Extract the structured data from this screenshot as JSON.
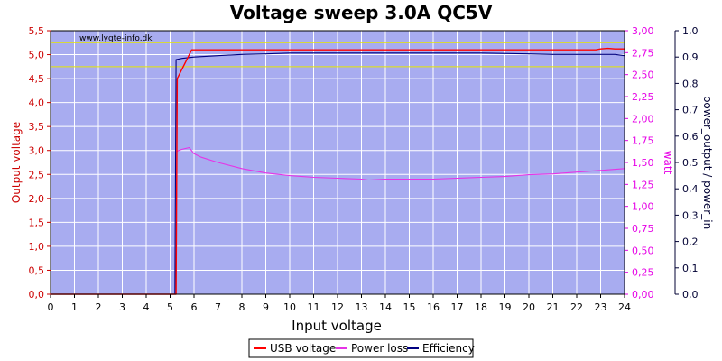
{
  "chart_data": {
    "type": "line",
    "title": "Voltage sweep 3.0A QC5V",
    "watermark": "www.lygte-info.dk",
    "xlabel": "Input voltage",
    "ylabel_left": "Output voltage",
    "ylabel_right1": "watt",
    "ylabel_right2": "power_output / power_in",
    "xlim": [
      0,
      24
    ],
    "ylim_left": [
      0,
      5.5
    ],
    "ylim_right1": [
      0,
      3.0
    ],
    "ylim_right2": [
      0,
      1.0
    ],
    "x_ticks": [
      "0",
      "1",
      "2",
      "3",
      "4",
      "5",
      "6",
      "7",
      "8",
      "9",
      "10",
      "11",
      "12",
      "13",
      "14",
      "15",
      "16",
      "17",
      "18",
      "19",
      "20",
      "21",
      "22",
      "23",
      "24"
    ],
    "left_ticks": [
      "0,0",
      "0,5",
      "1,0",
      "1,5",
      "2,0",
      "2,5",
      "3,0",
      "3,5",
      "4,0",
      "4,5",
      "5,0",
      "5,5"
    ],
    "right1_ticks": [
      "0,00",
      "0,25",
      "0,50",
      "0,75",
      "1,00",
      "1,25",
      "1,50",
      "1,75",
      "2,00",
      "2,25",
      "2,50",
      "2,75",
      "3,00"
    ],
    "right2_ticks": [
      "0,0",
      "0,1",
      "0,2",
      "0,3",
      "0,4",
      "0,5",
      "0,6",
      "0,7",
      "0,8",
      "0,9",
      "1,0"
    ],
    "reference_lines_left": [
      4.75,
      5.25
    ],
    "grid": true,
    "legend_position": "bottom",
    "colors": {
      "background": "#a8acf0",
      "grid": "#ffffff",
      "usb_voltage": "#ff0000",
      "power_loss": "#e633e6",
      "efficiency": "#000080",
      "reference": "#e6e600",
      "left_axis": "#cc0000",
      "right1_axis": "#e600e6",
      "right2_axis": "#000033"
    },
    "series": [
      {
        "name": "USB voltage",
        "axis": "left",
        "x": [
          0,
          5.0,
          5.2,
          5.25,
          5.3,
          5.6,
          5.9,
          6.0,
          7,
          8,
          10,
          12,
          14,
          16,
          18,
          20,
          22,
          22.8,
          23.0,
          23.3,
          23.6,
          24
        ],
        "y": [
          0,
          0,
          0,
          0,
          4.5,
          4.8,
          5.1,
          5.1,
          5.1,
          5.1,
          5.1,
          5.1,
          5.1,
          5.1,
          5.1,
          5.1,
          5.1,
          5.1,
          5.12,
          5.13,
          5.12,
          5.12
        ]
      },
      {
        "name": "Power loss",
        "axis": "right1",
        "x": [
          5.3,
          5.5,
          5.8,
          6.0,
          6.3,
          7,
          8,
          9,
          10,
          11,
          12,
          13,
          13.3,
          14,
          15,
          16,
          17,
          18,
          19,
          20,
          21,
          22,
          23,
          24
        ],
        "y": [
          1.63,
          1.65,
          1.67,
          1.6,
          1.56,
          1.5,
          1.43,
          1.38,
          1.35,
          1.33,
          1.32,
          1.31,
          1.3,
          1.31,
          1.31,
          1.31,
          1.32,
          1.33,
          1.34,
          1.36,
          1.37,
          1.39,
          1.41,
          1.43
        ]
      },
      {
        "name": "Efficiency",
        "axis": "right2",
        "x": [
          0,
          5.15,
          5.2,
          5.25,
          5.5,
          6.0,
          7,
          8,
          9,
          10,
          12,
          14,
          16,
          18,
          20,
          21,
          22,
          23,
          23.6,
          24
        ],
        "y": [
          0,
          0,
          0,
          0.89,
          0.895,
          0.9,
          0.905,
          0.91,
          0.912,
          0.915,
          0.915,
          0.915,
          0.915,
          0.915,
          0.912,
          0.91,
          0.91,
          0.91,
          0.91,
          0.905
        ]
      }
    ]
  }
}
